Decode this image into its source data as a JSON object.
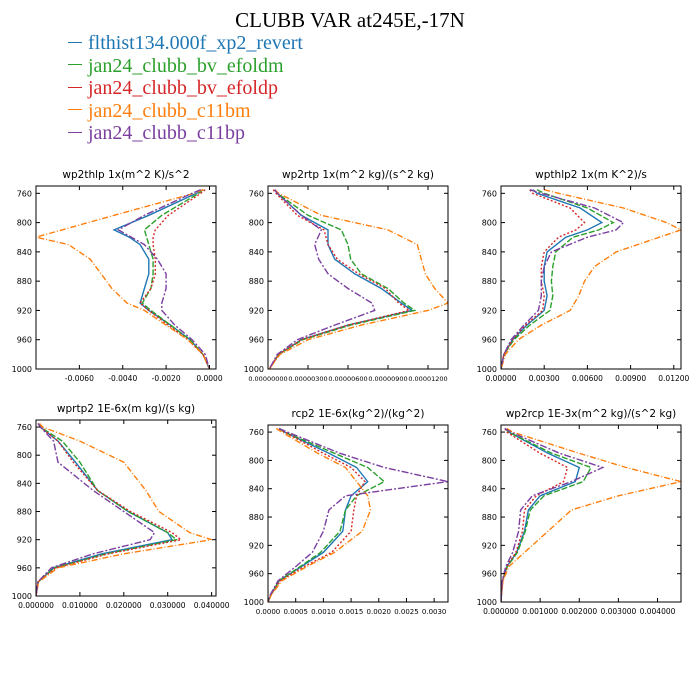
{
  "title": "CLUBB VAR at245E,-17N",
  "legend": [
    {
      "label": "flthist134.000f_xp2_revert",
      "color": "#1f77b4"
    },
    {
      "label": "jan24_clubb_bv_efoldm",
      "color": "#2ca02c"
    },
    {
      "label": "jan24_clubb_bv_efoldp",
      "color": "#d62728"
    },
    {
      "label": "jan24_clubb_c11bm",
      "color": "#ff7f0e"
    },
    {
      "label": "jan24_clubb_c11bp",
      "color": "#7b3fa0"
    }
  ],
  "chart_data": [
    {
      "type": "line",
      "title": "wp2thlp  1x(m^2 K)/s^2",
      "xlim": [
        -0.008,
        0.0003
      ],
      "ylim": [
        750,
        1000
      ],
      "xticks": [
        -0.006,
        -0.004,
        -0.002,
        0.0
      ],
      "xtick_labels": [
        "-0.0060",
        "-0.0040",
        "-0.0020",
        "0.0000"
      ],
      "yticks": [
        760,
        800,
        840,
        880,
        920,
        960,
        1000
      ],
      "y": [
        755,
        760,
        790,
        810,
        820,
        830,
        850,
        870,
        890,
        910,
        920,
        940,
        960,
        980,
        1000
      ],
      "series": [
        {
          "name": "flthist134.000f_xp2_revert",
          "values": [
            -0.0003,
            -0.0006,
            -0.0028,
            -0.0044,
            -0.0037,
            -0.0032,
            -0.0028,
            -0.0028,
            -0.003,
            -0.0032,
            -0.0028,
            -0.0018,
            -0.0009,
            -0.0003,
            0.0
          ]
        },
        {
          "name": "jan24_clubb_bv_efoldm",
          "values": [
            -0.0003,
            -0.0005,
            -0.0022,
            -0.003,
            -0.0029,
            -0.0028,
            -0.0026,
            -0.0026,
            -0.0027,
            -0.0031,
            -0.0027,
            -0.0018,
            -0.0009,
            -0.0003,
            0.0
          ]
        },
        {
          "name": "jan24_clubb_bv_efoldp",
          "values": [
            -0.0002,
            -0.0004,
            -0.0019,
            -0.0025,
            -0.0026,
            -0.0026,
            -0.0025,
            -0.0025,
            -0.0027,
            -0.0032,
            -0.0028,
            -0.0019,
            -0.001,
            -0.0003,
            0.0
          ]
        },
        {
          "name": "jan24_clubb_c11bm",
          "values": [
            -0.0003,
            -0.0007,
            -0.0044,
            -0.0068,
            -0.008,
            -0.0065,
            -0.0055,
            -0.005,
            -0.0045,
            -0.0038,
            -0.003,
            -0.002,
            -0.001,
            -0.0003,
            0.0
          ]
        },
        {
          "name": "jan24_clubb_c11bp",
          "values": [
            -0.0004,
            -0.0008,
            -0.003,
            -0.0042,
            -0.0036,
            -0.003,
            -0.0024,
            -0.002,
            -0.002,
            -0.0022,
            -0.0022,
            -0.0016,
            -0.0008,
            -0.0002,
            0.0
          ]
        }
      ]
    },
    {
      "type": "line",
      "title": "wp2rtp  1x(m^2 kg)/(s^2 kg)",
      "xlim": [
        0.0,
        1.35e-05
      ],
      "ylim": [
        750,
        1000
      ],
      "xticks": [
        0.0,
        3e-06,
        6e-06,
        9e-06,
        1.2e-05
      ],
      "xtick_labels": [
        "0.00000000",
        "0.00000300",
        "0.00000600",
        "0.00000900",
        "0.00001200"
      ],
      "yticks": [
        760,
        800,
        840,
        880,
        920,
        960,
        1000
      ],
      "y": [
        755,
        760,
        790,
        810,
        830,
        850,
        870,
        890,
        910,
        920,
        940,
        960,
        980,
        1000
      ],
      "series": [
        {
          "name": "flthist134.000f_xp2_revert",
          "values": [
            5e-07,
            7e-07,
            2.5e-06,
            4.5e-06,
            4.5e-06,
            5e-06,
            6.5e-06,
            8.5e-06,
            1e-05,
            1.08e-05,
            6e-06,
            2.5e-06,
            8e-07,
            1e-07
          ]
        },
        {
          "name": "jan24_clubb_bv_efoldm",
          "values": [
            5e-07,
            7e-07,
            3e-06,
            5.5e-06,
            6e-06,
            6.2e-06,
            7e-06,
            9e-06,
            1.02e-05,
            1.1e-05,
            6.2e-06,
            2.6e-06,
            8e-07,
            1e-07
          ]
        },
        {
          "name": "jan24_clubb_bv_efoldp",
          "values": [
            4e-07,
            6e-07,
            2.2e-06,
            4.2e-06,
            4.5e-06,
            5.2e-06,
            6.8e-06,
            8.8e-06,
            9.8e-06,
            1.06e-05,
            6e-06,
            2.5e-06,
            8e-07,
            1e-07
          ]
        },
        {
          "name": "jan24_clubb_c11bm",
          "values": [
            5e-07,
            8e-07,
            4e-06,
            9e-06,
            1.12e-05,
            1.15e-05,
            1.18e-05,
            1.25e-05,
            1.35e-05,
            1.2e-05,
            7e-06,
            3e-06,
            9e-07,
            1e-07
          ]
        },
        {
          "name": "jan24_clubb_c11bp",
          "values": [
            5e-07,
            7e-07,
            2.5e-06,
            4e-06,
            3.5e-06,
            3.8e-06,
            4.5e-06,
            6e-06,
            7.8e-06,
            8e-06,
            5e-06,
            2.2e-06,
            7e-07,
            1e-07
          ]
        }
      ]
    },
    {
      "type": "line",
      "title": "wpthlp2  1x(m K^2)/s",
      "xlim": [
        0.0,
        0.0125
      ],
      "ylim": [
        750,
        1000
      ],
      "xticks": [
        0.0,
        0.003,
        0.006,
        0.009,
        0.012
      ],
      "xtick_labels": [
        "0.00000",
        "0.00300",
        "0.00600",
        "0.00900",
        "0.01200"
      ],
      "yticks": [
        760,
        800,
        840,
        880,
        920,
        960,
        1000
      ],
      "y": [
        755,
        760,
        780,
        800,
        810,
        820,
        840,
        860,
        880,
        900,
        920,
        940,
        960,
        980,
        1000
      ],
      "series": [
        {
          "name": "flthist134.000f_xp2_revert",
          "values": [
            0.0022,
            0.0025,
            0.0055,
            0.007,
            0.006,
            0.0045,
            0.0032,
            0.003,
            0.003,
            0.0032,
            0.003,
            0.0018,
            0.0008,
            0.0002,
            0.0
          ]
        },
        {
          "name": "jan24_clubb_bv_efoldm",
          "values": [
            0.0025,
            0.003,
            0.006,
            0.0078,
            0.0068,
            0.005,
            0.0038,
            0.0036,
            0.0035,
            0.0036,
            0.0034,
            0.002,
            0.0009,
            0.0002,
            0.0
          ]
        },
        {
          "name": "jan24_clubb_bv_efoldp",
          "values": [
            0.002,
            0.0022,
            0.0048,
            0.0058,
            0.0052,
            0.004,
            0.003,
            0.0028,
            0.0028,
            0.003,
            0.0029,
            0.0017,
            0.0008,
            0.0002,
            0.0
          ]
        },
        {
          "name": "jan24_clubb_c11bm",
          "values": [
            0.003,
            0.004,
            0.0085,
            0.0115,
            0.0125,
            0.011,
            0.008,
            0.0065,
            0.0058,
            0.0054,
            0.0048,
            0.0028,
            0.0012,
            0.0003,
            0.0
          ]
        },
        {
          "name": "jan24_clubb_c11bp",
          "values": [
            0.002,
            0.0028,
            0.0065,
            0.0085,
            0.008,
            0.006,
            0.0035,
            0.003,
            0.0028,
            0.0028,
            0.0026,
            0.0016,
            0.0007,
            0.0002,
            0.0
          ]
        }
      ]
    },
    {
      "type": "line",
      "title": "wprtp2  1E-6x(m kg)/(s kg)",
      "xlim": [
        0.0,
        0.041
      ],
      "ylim": [
        750,
        1000
      ],
      "xticks": [
        0.0,
        0.01,
        0.02,
        0.03,
        0.04
      ],
      "xtick_labels": [
        "0.000000",
        "0.010000",
        "0.020000",
        "0.030000",
        "0.040000"
      ],
      "yticks": [
        760,
        800,
        840,
        880,
        920,
        960,
        1000
      ],
      "y": [
        755,
        760,
        780,
        810,
        850,
        880,
        910,
        920,
        940,
        960,
        980,
        1000
      ],
      "series": [
        {
          "name": "flthist134.000f_xp2_revert",
          "values": [
            0.0005,
            0.001,
            0.005,
            0.009,
            0.014,
            0.021,
            0.03,
            0.031,
            0.015,
            0.004,
            0.0005,
            0.0
          ]
        },
        {
          "name": "jan24_clubb_bv_efoldm",
          "values": [
            0.0005,
            0.001,
            0.006,
            0.01,
            0.014,
            0.021,
            0.03,
            0.032,
            0.016,
            0.0042,
            0.0005,
            0.0
          ]
        },
        {
          "name": "jan24_clubb_bv_efoldp",
          "values": [
            0.0005,
            0.001,
            0.005,
            0.0085,
            0.014,
            0.0215,
            0.031,
            0.033,
            0.0165,
            0.0045,
            0.0005,
            0.0
          ]
        },
        {
          "name": "jan24_clubb_c11bm",
          "values": [
            0.0008,
            0.0015,
            0.01,
            0.02,
            0.025,
            0.028,
            0.035,
            0.04,
            0.02,
            0.005,
            0.0006,
            0.0
          ]
        },
        {
          "name": "jan24_clubb_c11bp",
          "values": [
            0.0005,
            0.001,
            0.004,
            0.005,
            0.013,
            0.02,
            0.027,
            0.026,
            0.013,
            0.0035,
            0.0004,
            0.0
          ]
        }
      ]
    },
    {
      "type": "line",
      "title": "rcp2  1E-6x(kg^2)/(kg^2)",
      "xlim": [
        0.0,
        0.00325
      ],
      "ylim": [
        750,
        1000
      ],
      "xticks": [
        0.0,
        0.0005,
        0.001,
        0.0015,
        0.002,
        0.0025,
        0.003
      ],
      "xtick_labels": [
        "0.0000",
        "0.0005",
        "0.0010",
        "0.0015",
        "0.0020",
        "0.0025",
        "0.0030"
      ],
      "yticks": [
        760,
        800,
        840,
        880,
        920,
        960,
        1000
      ],
      "y": [
        755,
        760,
        790,
        810,
        830,
        850,
        870,
        900,
        930,
        950,
        970,
        990,
        1000
      ],
      "series": [
        {
          "name": "flthist134.000f_xp2_revert",
          "values": [
            0.0002,
            0.0003,
            0.0011,
            0.0016,
            0.0018,
            0.0015,
            0.0014,
            0.00135,
            0.001,
            0.0006,
            0.0002,
            5e-05,
            0.0
          ]
        },
        {
          "name": "jan24_clubb_bv_efoldm",
          "values": [
            0.0002,
            0.0003,
            0.0012,
            0.0018,
            0.0021,
            0.0016,
            0.0014,
            0.0013,
            0.00095,
            0.00058,
            0.0002,
            5e-05,
            0.0
          ]
        },
        {
          "name": "jan24_clubb_bv_efoldp",
          "values": [
            0.0002,
            0.0003,
            0.001,
            0.0015,
            0.00175,
            0.0016,
            0.00155,
            0.0015,
            0.00115,
            0.00065,
            0.00022,
            5e-05,
            0.0
          ]
        },
        {
          "name": "jan24_clubb_c11bm",
          "values": [
            0.00015,
            0.00025,
            0.0009,
            0.0014,
            0.0016,
            0.0018,
            0.00185,
            0.0017,
            0.0012,
            0.0007,
            0.00025,
            6e-05,
            0.0
          ]
        },
        {
          "name": "jan24_clubb_c11bp",
          "values": [
            0.0002,
            0.00035,
            0.0013,
            0.0021,
            0.00325,
            0.0014,
            0.0011,
            0.001,
            0.0008,
            0.0005,
            0.00018,
            4e-05,
            0.0
          ]
        }
      ]
    },
    {
      "type": "line",
      "title": "wp2rcp  1E-3x(m^2 kg)/(s^2 kg)",
      "xlim": [
        0.0,
        0.0046
      ],
      "ylim": [
        750,
        1000
      ],
      "xticks": [
        0.0,
        0.001,
        0.002,
        0.003,
        0.004
      ],
      "xtick_labels": [
        "0.000000",
        "0.001000",
        "0.002000",
        "0.003000",
        "0.004000"
      ],
      "yticks": [
        760,
        800,
        840,
        880,
        920,
        960,
        1000
      ],
      "y": [
        755,
        760,
        790,
        810,
        830,
        850,
        870,
        900,
        930,
        950,
        970,
        990,
        1000
      ],
      "series": [
        {
          "name": "flthist134.000f_xp2_revert",
          "values": [
            0.0001,
            0.0002,
            0.0012,
            0.002,
            0.0019,
            0.001,
            0.0007,
            0.0006,
            0.0004,
            0.00015,
            4e-05,
            1e-05,
            0.0
          ]
        },
        {
          "name": "jan24_clubb_bv_efoldm",
          "values": [
            0.0001,
            0.0002,
            0.0013,
            0.0023,
            0.0021,
            0.0011,
            0.00075,
            0.00062,
            0.00042,
            0.00016,
            4e-05,
            1e-05,
            0.0
          ]
        },
        {
          "name": "jan24_clubb_bv_efoldp",
          "values": [
            0.0001,
            0.00015,
            0.001,
            0.0017,
            0.0016,
            0.0009,
            0.0006,
            0.00055,
            0.00038,
            0.00014,
            4e-05,
            1e-05,
            0.0
          ]
        },
        {
          "name": "jan24_clubb_c11bm",
          "values": [
            0.00015,
            0.0003,
            0.002,
            0.0032,
            0.0046,
            0.003,
            0.0018,
            0.0012,
            0.0006,
            0.0002,
            5e-05,
            1e-05,
            0.0
          ]
        },
        {
          "name": "jan24_clubb_c11bp",
          "values": [
            0.0001,
            0.00025,
            0.0015,
            0.0026,
            0.0018,
            0.0008,
            0.0005,
            0.00045,
            0.0003,
            0.00012,
            3e-05,
            1e-05,
            0.0
          ]
        }
      ]
    }
  ]
}
